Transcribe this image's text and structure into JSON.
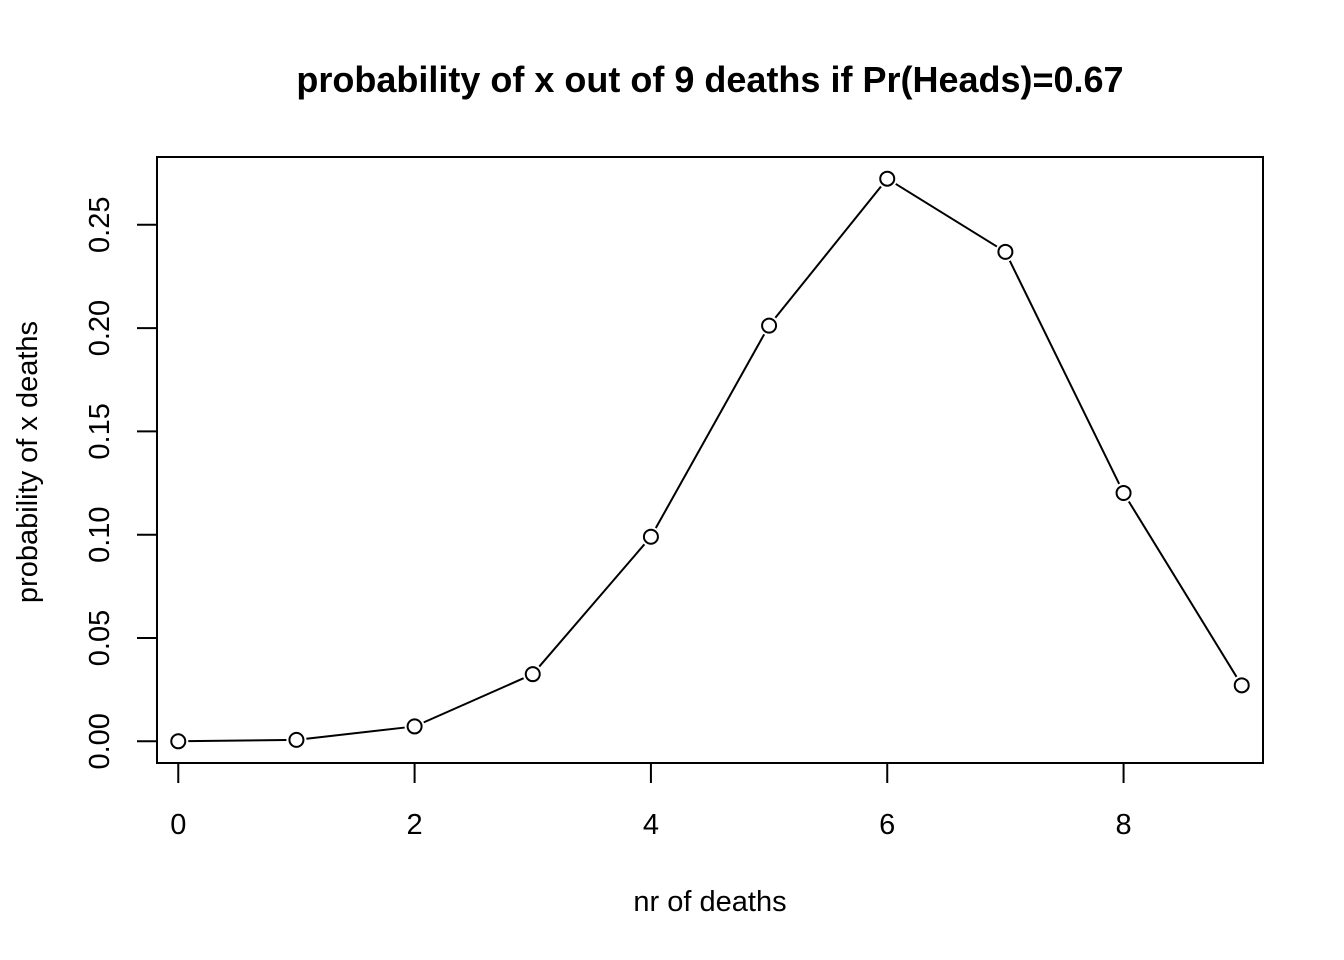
{
  "chart_data": {
    "type": "line",
    "title": "probability of x out of 9 deaths if Pr(Heads)=0.67",
    "xlabel": "nr of deaths",
    "ylabel": "probability of x deaths",
    "x": [
      0,
      1,
      2,
      3,
      4,
      5,
      6,
      7,
      8,
      9
    ],
    "values": [
      0.0,
      0.0007,
      0.0072,
      0.0325,
      0.099,
      0.2012,
      0.2723,
      0.2369,
      0.1202,
      0.0271
    ],
    "xlim": [
      -0.18,
      9.18
    ],
    "ylim": [
      -0.0105,
      0.2828
    ],
    "xticks": [
      0,
      2,
      4,
      6,
      8
    ],
    "xtick_labels": [
      "0",
      "2",
      "4",
      "6",
      "8"
    ],
    "yticks": [
      0,
      0.05,
      0.1,
      0.15,
      0.2,
      0.25
    ],
    "ytick_labels": [
      "0.00",
      "0.05",
      "0.10",
      "0.15",
      "0.20",
      "0.25"
    ],
    "marker": "open-circle",
    "line_color": "#000000",
    "grid": false,
    "legend": "none"
  }
}
